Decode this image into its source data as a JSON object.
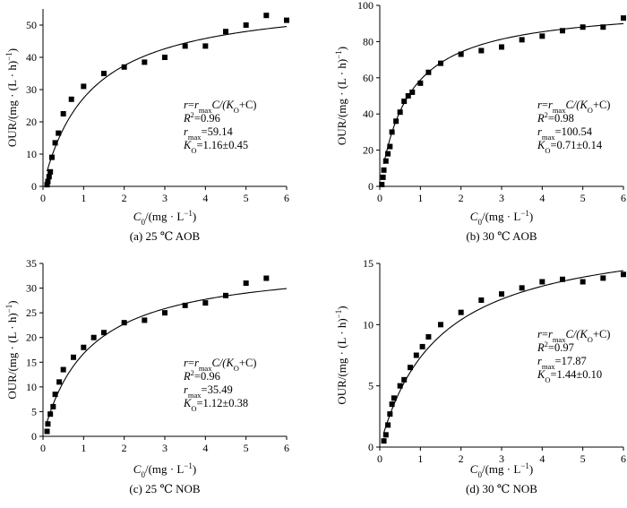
{
  "figure": {
    "ylabel_main": "OUR/(mg · (L · h)",
    "ylabel_sup": "−1",
    "ylabel_end": ")",
    "xlabel_main": "C",
    "xlabel_sub": "0",
    "xlabel_end": "/(mg · L",
    "xlabel_sup": "−1",
    "xlabel_close": ")"
  },
  "chart_data": [
    {
      "type": "scatter",
      "caption": "(a) 25 ℃ AOB",
      "xlim": [
        0,
        6
      ],
      "ylim": [
        0,
        55
      ],
      "xticks": [
        0,
        1,
        2,
        3,
        4,
        5,
        6
      ],
      "yticks": [
        0,
        10,
        20,
        30,
        40,
        50
      ],
      "x": [
        0.1,
        0.12,
        0.15,
        0.18,
        0.22,
        0.3,
        0.38,
        0.5,
        0.7,
        1.0,
        1.5,
        2.0,
        2.5,
        3.0,
        3.5,
        4.0,
        4.5,
        5.0,
        5.5,
        6.0
      ],
      "y": [
        0.5,
        1.5,
        3,
        4.5,
        9,
        13.5,
        16.5,
        22.5,
        27,
        31,
        35,
        37,
        38.5,
        40,
        43.5,
        43.5,
        48,
        50,
        53,
        51.5
      ],
      "fit": {
        "r_max": 59.14,
        "K_O": 1.16
      },
      "annotation": {
        "equation": {
          "r": "r",
          "eq": "=",
          "r2": "r",
          "max": "max",
          "C": "C/(",
          "K": "K",
          "O": "O",
          "tail": "+C)"
        },
        "R2": {
          "label": "R",
          "sup": "2",
          "value": "=0.96"
        },
        "rmax": {
          "label": "r",
          "sub": "max",
          "value": "=59.14"
        },
        "KO": {
          "label": "K",
          "sub": "O",
          "value": "=1.16±0.45"
        }
      }
    },
    {
      "type": "scatter",
      "caption": "(b) 30 ℃ AOB",
      "xlim": [
        0,
        6
      ],
      "ylim": [
        0,
        100
      ],
      "xticks": [
        0,
        1,
        2,
        3,
        4,
        5,
        6
      ],
      "yticks": [
        0,
        20,
        40,
        60,
        80,
        100
      ],
      "x": [
        0.05,
        0.08,
        0.1,
        0.15,
        0.2,
        0.25,
        0.3,
        0.4,
        0.5,
        0.6,
        0.7,
        0.8,
        1.0,
        1.2,
        1.5,
        2.0,
        2.5,
        3.0,
        3.5,
        4.0,
        4.5,
        5.0,
        5.5,
        6.0
      ],
      "y": [
        1,
        5,
        9,
        14,
        18,
        22,
        30,
        36,
        41,
        47,
        50,
        52,
        57,
        63,
        68,
        73,
        75,
        77,
        81,
        83,
        86,
        88,
        88,
        93
      ],
      "fit": {
        "r_max": 100.54,
        "K_O": 0.71
      },
      "annotation": {
        "equation": {
          "r": "r",
          "eq": "=",
          "r2": "r",
          "max": "max",
          "C": "C/(",
          "K": "K",
          "O": "O",
          "tail": "+C)"
        },
        "R2": {
          "label": "R",
          "sup": "2",
          "value": "=0.98"
        },
        "rmax": {
          "label": "r",
          "sub": "max",
          "value": "=100.54"
        },
        "KO": {
          "label": "K",
          "sub": "O",
          "value": "=0.71±0.14"
        }
      }
    },
    {
      "type": "scatter",
      "caption": "(c) 25 ℃ NOB",
      "xlim": [
        0,
        6
      ],
      "ylim": [
        0,
        35
      ],
      "xticks": [
        0,
        1,
        2,
        3,
        4,
        5,
        6
      ],
      "yticks": [
        0,
        5,
        10,
        15,
        20,
        25,
        30,
        35
      ],
      "x": [
        0.1,
        0.12,
        0.18,
        0.25,
        0.3,
        0.4,
        0.5,
        0.75,
        1.0,
        1.25,
        1.5,
        2.0,
        2.5,
        3.0,
        3.5,
        4.0,
        4.5,
        5.0,
        5.5
      ],
      "y": [
        1,
        2.5,
        4.5,
        6,
        8.5,
        11,
        13.5,
        16,
        18,
        20,
        21,
        23,
        23.5,
        25,
        26.5,
        27,
        28.5,
        31,
        32
      ],
      "fit": {
        "r_max": 35.49,
        "K_O": 1.12
      },
      "annotation": {
        "equation": {
          "r": "r",
          "eq": "=",
          "r2": "r",
          "max": "max",
          "C": "C/(",
          "K": "K",
          "O": "O",
          "tail": "+C)"
        },
        "R2": {
          "label": "R",
          "sup": "2",
          "value": "=0.96"
        },
        "rmax": {
          "label": "r",
          "sub": "max",
          "value": "=35.49"
        },
        "KO": {
          "label": "K",
          "sub": "O",
          "value": "=1.12±0.38"
        }
      }
    },
    {
      "type": "scatter",
      "caption": "(d) 30 ℃ NOB",
      "xlim": [
        0,
        6
      ],
      "ylim": [
        0,
        15
      ],
      "xticks": [
        0,
        1,
        2,
        3,
        4,
        5,
        6
      ],
      "yticks": [
        0,
        5,
        10,
        15
      ],
      "x": [
        0.1,
        0.15,
        0.2,
        0.25,
        0.3,
        0.35,
        0.5,
        0.6,
        0.75,
        0.9,
        1.05,
        1.2,
        1.5,
        2.0,
        2.5,
        3.0,
        3.5,
        4.0,
        4.5,
        5.0,
        5.5,
        6.0
      ],
      "y": [
        0.5,
        1.0,
        1.8,
        2.7,
        3.5,
        4.0,
        5.0,
        5.5,
        6.5,
        7.5,
        8.2,
        9.0,
        10,
        11,
        12,
        12.5,
        13,
        13.5,
        13.7,
        13.5,
        13.8,
        14.1
      ],
      "fit": {
        "r_max": 17.87,
        "K_O": 1.44
      },
      "annotation": {
        "equation": {
          "r": "r",
          "eq": "=",
          "r2": "r",
          "max": "max",
          "C": "C/(",
          "K": "K",
          "O": "O",
          "tail": "+C)"
        },
        "R2": {
          "label": "R",
          "sup": "2",
          "value": "=0.97"
        },
        "rmax": {
          "label": "r",
          "sub": "max",
          "value": "=17.87"
        },
        "KO": {
          "label": "K",
          "sub": "O",
          "value": "=1.44±0.10"
        }
      }
    }
  ]
}
